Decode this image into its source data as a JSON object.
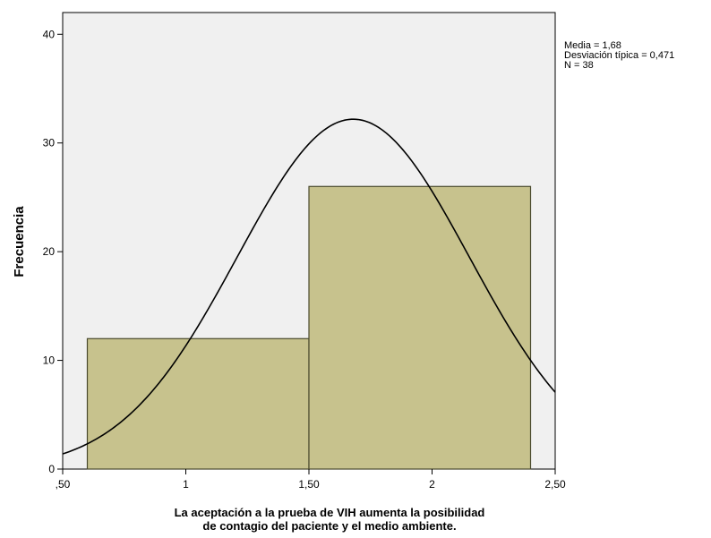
{
  "chart_data": {
    "type": "bar",
    "subtype": "histogram-with-normal-curve",
    "title": "",
    "ylabel": "Frecuencia",
    "xlabel_lines": [
      "La aceptación a la prueba de VIH aumenta la posibilidad",
      "de contagio del paciente y el medio ambiente."
    ],
    "xlim": [
      0.5,
      2.5
    ],
    "ylim": [
      0,
      42
    ],
    "y_ticks": [
      0,
      10,
      20,
      30,
      40
    ],
    "x_tick_labels": [
      {
        "value": 0.5,
        "label": ",50"
      },
      {
        "value": 1.0,
        "label": "1"
      },
      {
        "value": 1.5,
        "label": "1,50"
      },
      {
        "value": 2.0,
        "label": "2"
      },
      {
        "value": 2.5,
        "label": "2,50"
      }
    ],
    "bins": [
      {
        "start": 0.6,
        "end": 1.5,
        "value": 12
      },
      {
        "start": 1.5,
        "end": 2.4,
        "value": 26
      }
    ],
    "normal_curve": {
      "mean": 1.68,
      "sd": 0.471,
      "n": 38,
      "bin_width": 1
    },
    "stats_text": [
      "Media = 1,68",
      "Desviación típica = 0,471",
      "N = 38"
    ],
    "colors": {
      "plot_background": "#f0f0f0",
      "bar_fill": "#c7c28d",
      "bar_stroke": "#4a4a2e",
      "curve": "#000000"
    },
    "legend": "top-right",
    "grid": false
  }
}
